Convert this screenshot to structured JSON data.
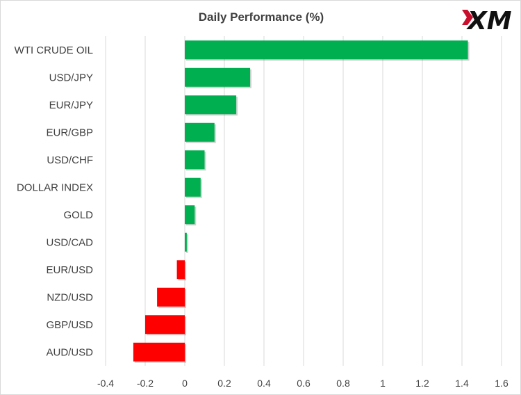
{
  "brand": {
    "logo_text": "XM"
  },
  "colors": {
    "positive": "#00b050",
    "negative": "#ff0000",
    "grid": "#d9d9d9",
    "text": "#404040"
  },
  "chart_data": {
    "type": "bar",
    "orientation": "horizontal",
    "title": "Daily Performance (%)",
    "xlabel": "",
    "ylabel": "",
    "categories": [
      "WTI CRUDE OIL",
      "USD/JPY",
      "EUR/JPY",
      "EUR/GBP",
      "USD/CHF",
      "DOLLAR INDEX",
      "GOLD",
      "USD/CAD",
      "EUR/USD",
      "NZD/USD",
      "GBP/USD",
      "AUD/USD"
    ],
    "values": [
      1.43,
      0.33,
      0.26,
      0.15,
      0.1,
      0.08,
      0.05,
      0.01,
      -0.04,
      -0.14,
      -0.2,
      -0.26
    ],
    "xlim": [
      -0.4,
      1.6
    ],
    "xticks": [
      "-0.4",
      "-0.2",
      "0",
      "0.2",
      "0.4",
      "0.6",
      "0.8",
      "1",
      "1.2",
      "1.4",
      "1.6"
    ],
    "xtick_values": [
      -0.4,
      -0.2,
      0,
      0.2,
      0.4,
      0.6,
      0.8,
      1,
      1.2,
      1.4,
      1.6
    ],
    "grid": "vertical",
    "legend": "none"
  }
}
